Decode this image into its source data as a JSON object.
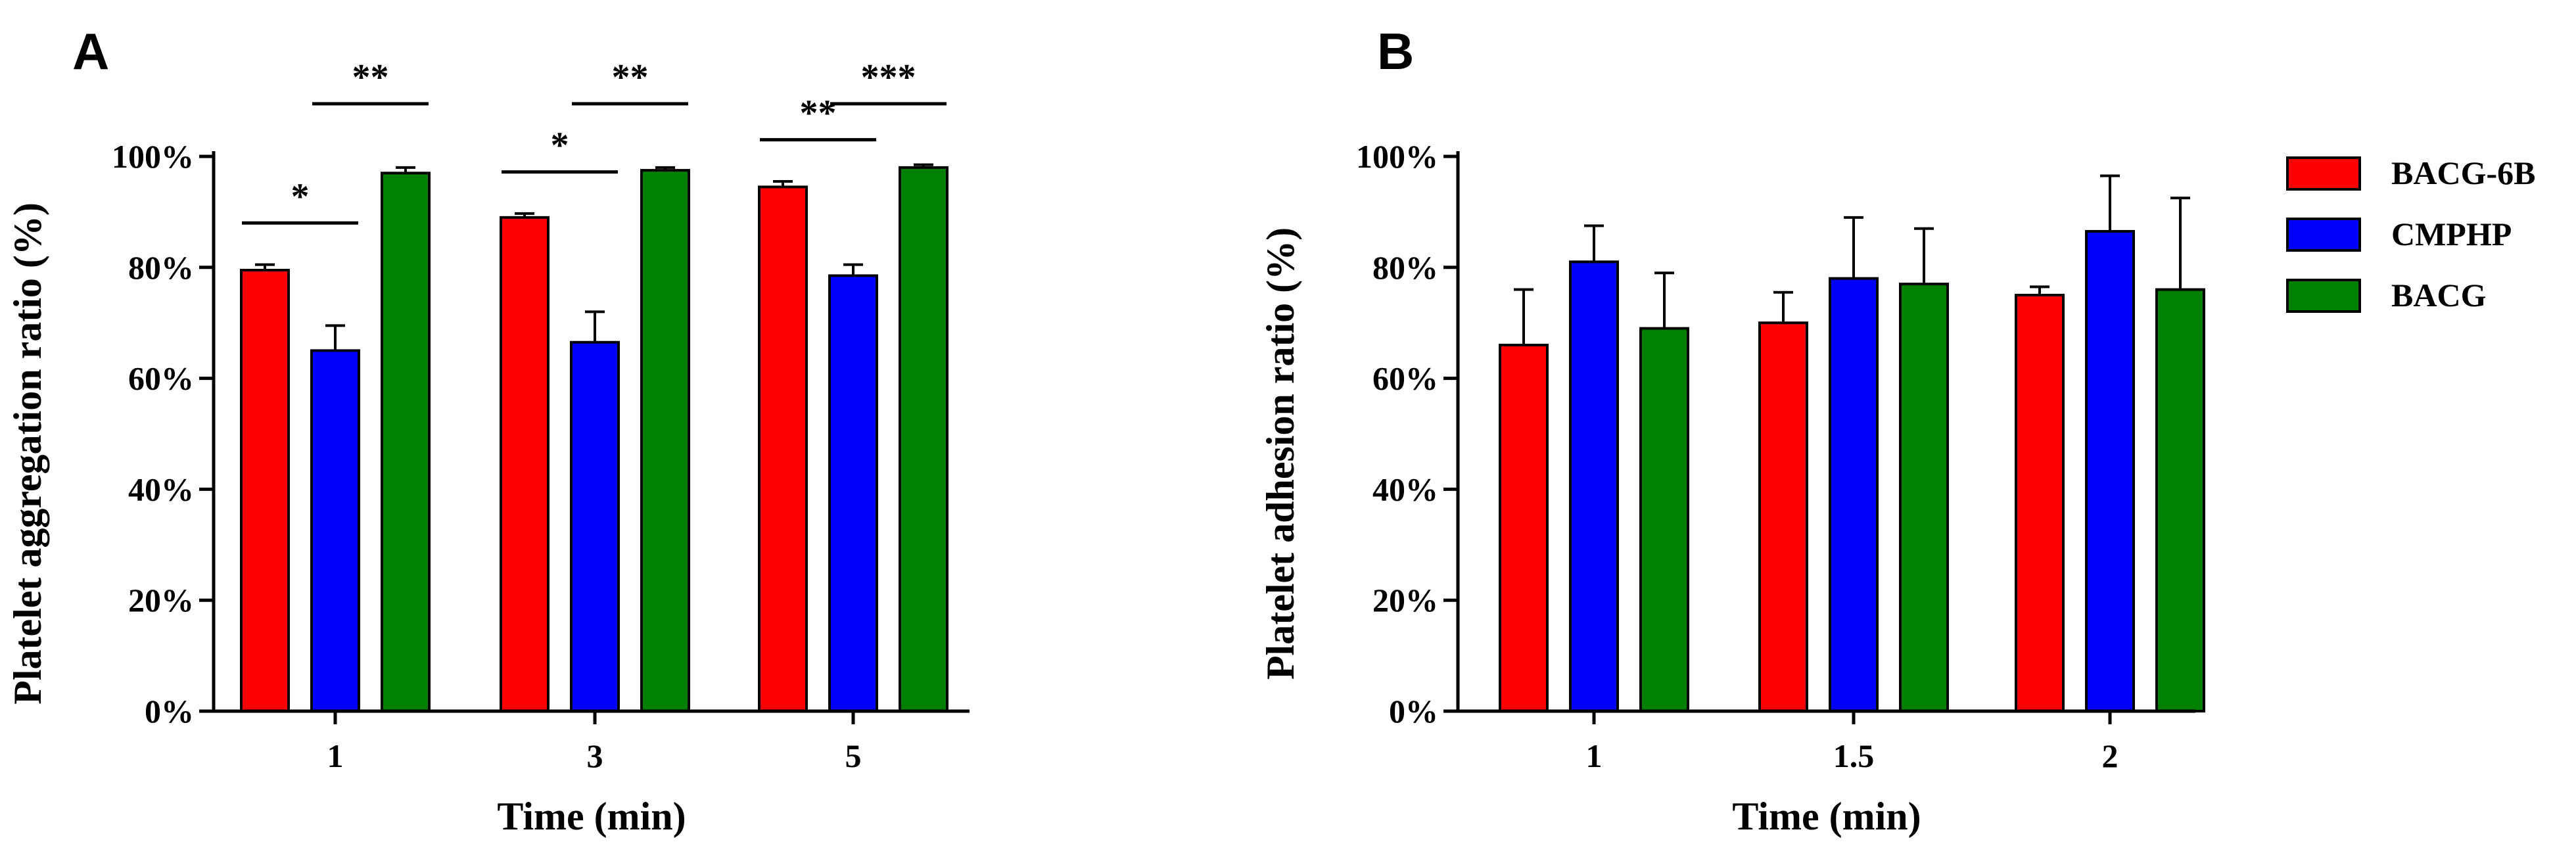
{
  "colors": {
    "BACG-6B": "#ff0000",
    "CMPHP": "#0000ff",
    "BACG": "#008000"
  },
  "legend": {
    "items": [
      "BACG-6B",
      "CMPHP",
      "BACG"
    ]
  },
  "chart_data": [
    {
      "panel": "A",
      "type": "bar",
      "title": "",
      "xlabel": "Time (min)",
      "ylabel": "Platelet aggregation ratio (%)",
      "categories": [
        "1",
        "3",
        "5"
      ],
      "ylim": [
        0,
        100
      ],
      "yticks": [
        "0%",
        "20%",
        "40%",
        "60%",
        "80%",
        "100%"
      ],
      "series": [
        {
          "name": "BACG-6B",
          "values": [
            79.5,
            89,
            94.5
          ],
          "errors": [
            1.0,
            0.7,
            1.0
          ]
        },
        {
          "name": "CMPHP",
          "values": [
            65,
            66.5,
            78.5
          ],
          "errors": [
            4.5,
            5.5,
            2.0
          ]
        },
        {
          "name": "BACG",
          "values": [
            97,
            97.5,
            98
          ],
          "errors": [
            1.0,
            0.5,
            0.5
          ]
        }
      ],
      "annotations": [
        {
          "category": "1",
          "from": "BACG-6B",
          "to": "CMPHP",
          "label": "*"
        },
        {
          "category": "1",
          "from": "CMPHP",
          "to": "BACG",
          "label": "**"
        },
        {
          "category": "3",
          "from": "BACG-6B",
          "to": "CMPHP",
          "label": "*"
        },
        {
          "category": "3",
          "from": "CMPHP",
          "to": "BACG",
          "label": "**"
        },
        {
          "category": "5",
          "from": "BACG-6B",
          "to": "CMPHP",
          "label": "**"
        },
        {
          "category": "5",
          "from": "CMPHP",
          "to": "BACG",
          "label": "***"
        }
      ]
    },
    {
      "panel": "B",
      "type": "bar",
      "title": "",
      "xlabel": "Time (min)",
      "ylabel": "Platelet adhesion ratio (%)",
      "categories": [
        "1",
        "1.5",
        "2"
      ],
      "ylim": [
        0,
        100
      ],
      "yticks": [
        "0%",
        "20%",
        "40%",
        "60%",
        "80%",
        "100%"
      ],
      "series": [
        {
          "name": "BACG-6B",
          "values": [
            66,
            70,
            75
          ],
          "errors": [
            10,
            5.5,
            1.5
          ]
        },
        {
          "name": "CMPHP",
          "values": [
            81,
            78,
            86.5
          ],
          "errors": [
            6.5,
            11,
            10
          ]
        },
        {
          "name": "BACG",
          "values": [
            69,
            77,
            76
          ],
          "errors": [
            10,
            10,
            16.5
          ]
        }
      ],
      "annotations": []
    }
  ]
}
